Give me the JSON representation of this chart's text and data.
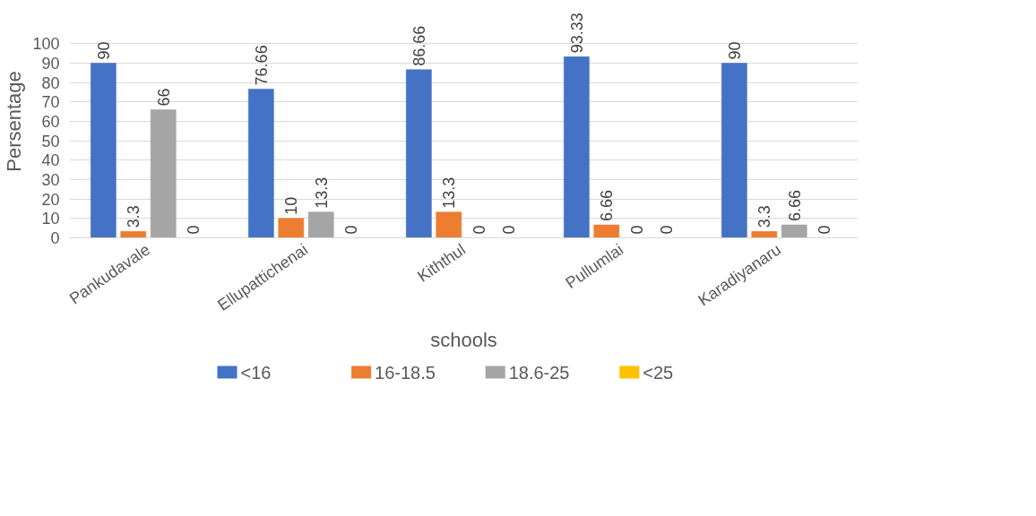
{
  "chart_data": {
    "type": "bar",
    "xlabel": "schools",
    "ylabel": "Persentage",
    "categories": [
      "Pankudavale",
      "Ellupattichenai",
      "Kiththul",
      "Pullumlai",
      "Karadiyanaru"
    ],
    "series": [
      {
        "name": "<16",
        "color": "#4472c4",
        "values": [
          90,
          76.66,
          86.66,
          93.33,
          90
        ]
      },
      {
        "name": "16-18.5",
        "color": "#ed7d31",
        "values": [
          3.3,
          10,
          13.3,
          6.66,
          3.3
        ]
      },
      {
        "name": "18.6-25",
        "color": "#a5a5a5",
        "values": [
          66,
          13.3,
          0,
          0,
          6.66
        ]
      },
      {
        "name": "<25",
        "color": "#ffc000",
        "values": [
          0,
          0,
          0,
          0,
          0
        ]
      }
    ],
    "ylim": [
      0,
      100
    ],
    "yticks": [
      0,
      10,
      20,
      30,
      40,
      50,
      60,
      70,
      80,
      90,
      100
    ],
    "grid": "y",
    "legend": "bottom",
    "data_labels": true
  }
}
